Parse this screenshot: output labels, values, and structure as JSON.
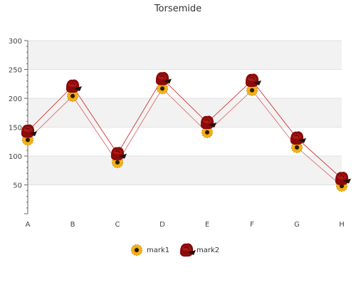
{
  "chart_data": {
    "type": "line",
    "title": "Torsemide",
    "xlabel": "",
    "ylabel": "",
    "categories": [
      "A",
      "B",
      "C",
      "D",
      "E",
      "F",
      "G",
      "H"
    ],
    "ylim": [
      0,
      300
    ],
    "yticks": [
      50,
      100,
      150,
      200,
      250,
      300
    ],
    "grid": true,
    "legend_position": "bottom-center",
    "series": [
      {
        "name": "mark1",
        "values": [
          128,
          204,
          89,
          217,
          141,
          214,
          115,
          48
        ],
        "color": "#d87070",
        "marker": "sunflower-icon"
      },
      {
        "name": "mark2",
        "values": [
          143,
          221,
          104,
          234,
          158,
          231,
          131,
          61
        ],
        "color": "#cc3333",
        "marker": "rose-icon"
      }
    ]
  }
}
